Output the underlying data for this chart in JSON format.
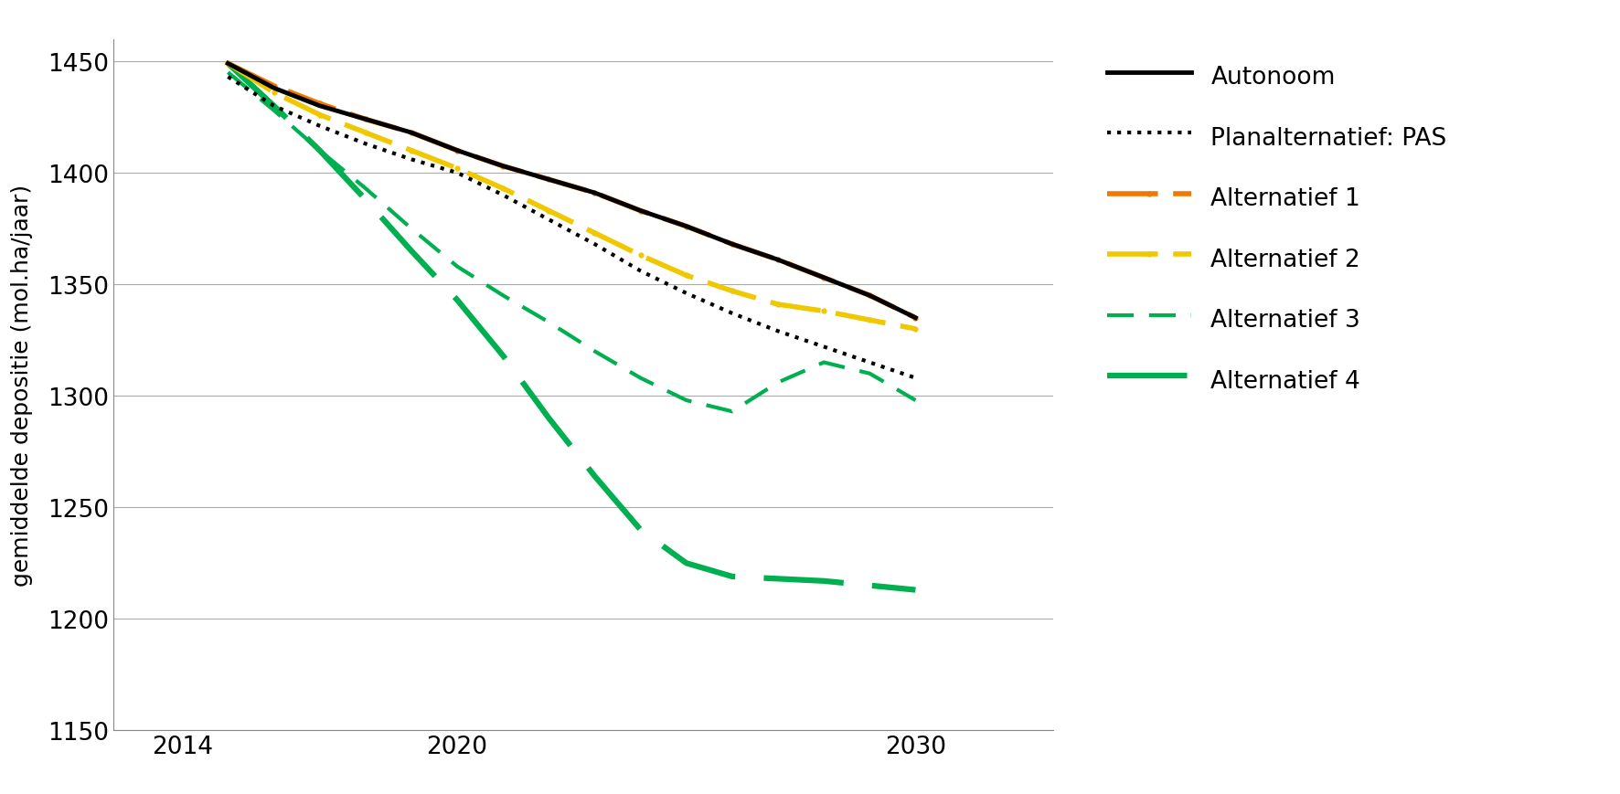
{
  "title": "",
  "ylabel": "gemiddelde depositie (mol.ha/jaar)",
  "xlabel": "",
  "ylim": [
    1150,
    1460
  ],
  "xlim": [
    2012.5,
    2033
  ],
  "xticks": [
    2014,
    2020,
    2030
  ],
  "yticks": [
    1150,
    1200,
    1250,
    1300,
    1350,
    1400,
    1450
  ],
  "background_color": "#ffffff",
  "series": {
    "Autonoom": {
      "x": [
        2015,
        2016,
        2017,
        2018,
        2019,
        2020,
        2021,
        2022,
        2023,
        2024,
        2025,
        2026,
        2027,
        2028,
        2029,
        2030
      ],
      "y": [
        1449,
        1438,
        1430,
        1424,
        1418,
        1410,
        1403,
        1397,
        1391,
        1383,
        1376,
        1368,
        1361,
        1353,
        1345,
        1335
      ],
      "color": "#000000",
      "linestyle": "solid",
      "linewidth": 3.5
    },
    "Planalternatief: PAS": {
      "x": [
        2015,
        2016,
        2017,
        2018,
        2019,
        2020,
        2021,
        2022,
        2023,
        2024,
        2025,
        2026,
        2027,
        2028,
        2029,
        2030
      ],
      "y": [
        1443,
        1430,
        1421,
        1413,
        1406,
        1400,
        1390,
        1379,
        1368,
        1356,
        1346,
        1337,
        1329,
        1322,
        1315,
        1308
      ],
      "color": "#000000",
      "linestyle": "dotted",
      "linewidth": 3.0
    },
    "Alternatief 1": {
      "x": [
        2015,
        2016,
        2017,
        2018,
        2019,
        2020,
        2021,
        2022,
        2023,
        2024,
        2025,
        2026,
        2027,
        2028,
        2029,
        2030
      ],
      "y": [
        1449,
        1439,
        1431,
        1424,
        1418,
        1410,
        1403,
        1397,
        1391,
        1383,
        1376,
        1368,
        1361,
        1353,
        1345,
        1335
      ],
      "color": "#f07800",
      "linestyle": "dashdot",
      "linewidth": 4.0
    },
    "Alternatief 2": {
      "x": [
        2015,
        2016,
        2017,
        2018,
        2019,
        2020,
        2021,
        2022,
        2023,
        2024,
        2025,
        2026,
        2027,
        2028,
        2029,
        2030
      ],
      "y": [
        1449,
        1436,
        1426,
        1418,
        1410,
        1402,
        1393,
        1383,
        1373,
        1363,
        1354,
        1347,
        1341,
        1338,
        1334,
        1330
      ],
      "color": "#f0c800",
      "linestyle": "dashdot",
      "linewidth": 4.0
    },
    "Alternatief 3": {
      "x": [
        2015,
        2016,
        2017,
        2018,
        2019,
        2020,
        2021,
        2022,
        2023,
        2024,
        2025,
        2026,
        2027,
        2028,
        2029,
        2030
      ],
      "y": [
        1445,
        1428,
        1410,
        1393,
        1375,
        1358,
        1345,
        1333,
        1320,
        1308,
        1298,
        1293,
        1306,
        1315,
        1310,
        1298
      ],
      "color": "#00b050",
      "linestyle": "dashed_short",
      "linewidth": 3.0,
      "dashes": [
        7,
        4
      ]
    },
    "Alternatief 4": {
      "x": [
        2015,
        2016,
        2017,
        2018,
        2019,
        2020,
        2021,
        2022,
        2023,
        2024,
        2025,
        2026,
        2027,
        2028,
        2029,
        2030
      ],
      "y": [
        1449,
        1430,
        1410,
        1388,
        1365,
        1343,
        1318,
        1290,
        1264,
        1240,
        1225,
        1219,
        1218,
        1217,
        1215,
        1213
      ],
      "color": "#00b050",
      "linestyle": "dashed_long",
      "linewidth": 4.5,
      "dashes": [
        14,
        5
      ]
    }
  },
  "legend_order": [
    "Autonoom",
    "Planalternatief: PAS",
    "Alternatief 1",
    "Alternatief 2",
    "Alternatief 3",
    "Alternatief 4"
  ]
}
